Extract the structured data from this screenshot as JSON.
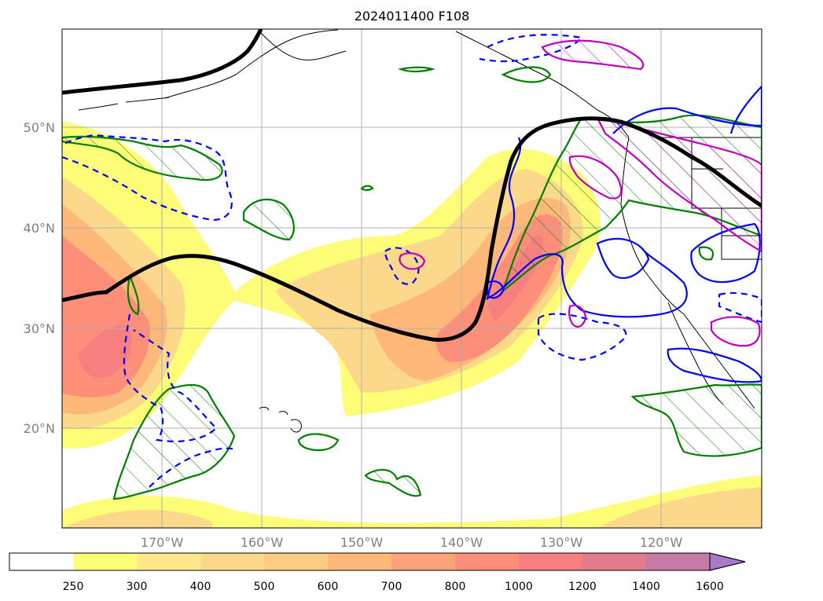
{
  "title": "2024011400 F108",
  "map": {
    "lat_ticks": [
      "50°N",
      "40°N",
      "30°N",
      "20°N"
    ],
    "lon_ticks": [
      "170°W",
      "160°W",
      "150°W",
      "140°W",
      "130°W",
      "120°W"
    ],
    "grid": true
  },
  "colorbar": {
    "labels": [
      "250",
      "300",
      "400",
      "500",
      "600",
      "700",
      "800",
      "1000",
      "1200",
      "1400",
      "1600"
    ],
    "colors": [
      "#fdfd78",
      "#fde98a",
      "#fcd98a",
      "#fdcb82",
      "#fdb87a",
      "#fda37a",
      "#fd8e7a",
      "#f77f80",
      "#e27c8c",
      "#c77aa6",
      "#a87ac8"
    ],
    "extend": "max"
  },
  "colors": {
    "black_contour": "#000000",
    "green_contour": "#008000",
    "blue_contour": "#0000ff",
    "magenta_contour": "#c000c0",
    "grid": "#b0b0b0",
    "tick_label": "#808080"
  }
}
